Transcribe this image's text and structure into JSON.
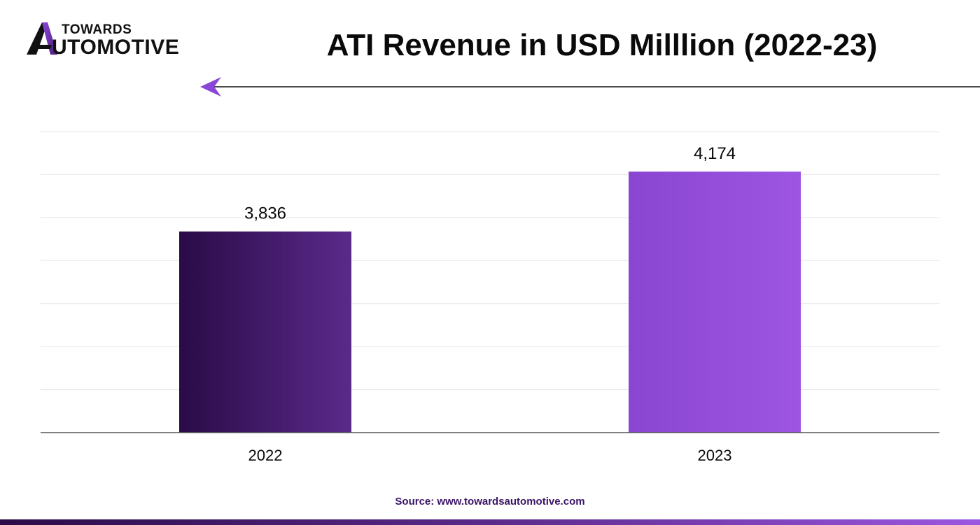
{
  "brand": {
    "line1": "TOWARDS",
    "line2": "UTOMOTIVE",
    "mark_colors": [
      "#2a0b47",
      "#8a46d8"
    ]
  },
  "chart_data": {
    "type": "bar",
    "title": "ATI Revenue in USD Milllion (2022-23)",
    "categories": [
      "2022",
      "2023"
    ],
    "values": [
      3836,
      4174
    ],
    "value_labels": [
      "3,836",
      "4,174"
    ],
    "xlabel": "",
    "ylabel": "",
    "ylim": [
      2700,
      4400
    ],
    "grid": true,
    "y_tick_labels_shown": false,
    "legend": "none",
    "bar_gradients": [
      [
        "#2a0b47",
        "#5a2a8a"
      ],
      [
        "#8a46d0",
        "#9d55e2"
      ]
    ]
  },
  "source": "Source: www.towardsautomotive.com",
  "colors": {
    "accent": "#8a46d8",
    "gridline": "#e6e6e6",
    "axis": "#555555",
    "text": "#0a0a0a"
  }
}
